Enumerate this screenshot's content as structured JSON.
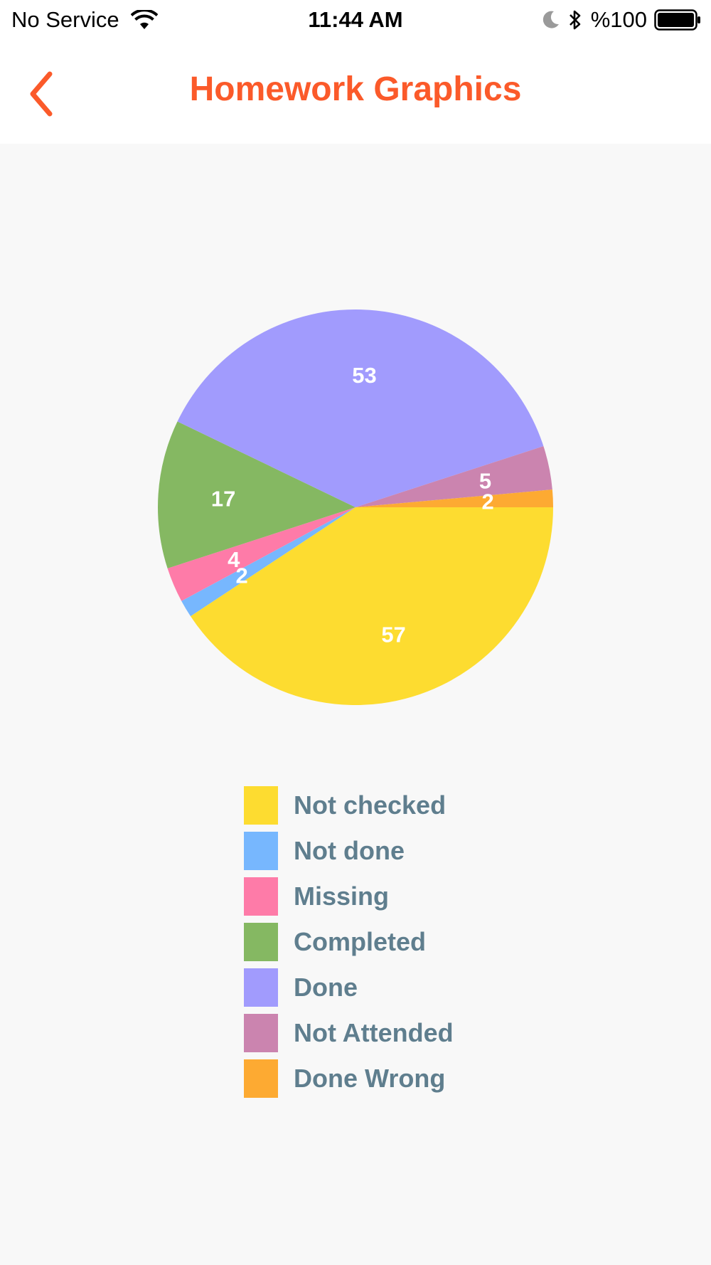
{
  "status_bar": {
    "carrier": "No Service",
    "time": "11:44 AM",
    "battery": "%100",
    "icons": [
      "wifi-icon",
      "moon-icon",
      "bluetooth-icon",
      "battery-icon"
    ]
  },
  "header": {
    "title": "Homework Graphics",
    "back_icon": "chevron-left-icon",
    "accent_color": "#fb5a2a"
  },
  "chart_data": {
    "type": "pie",
    "categories": [
      "Not checked",
      "Not done",
      "Missing",
      "Completed",
      "Done",
      "Not Attended",
      "Done Wrong"
    ],
    "values": [
      57,
      2,
      4,
      17,
      53,
      5,
      2
    ],
    "colors": [
      "#fddc30",
      "#77b7fe",
      "#fe7ba8",
      "#85b862",
      "#a19bfd",
      "#cb84af",
      "#fdaa32"
    ],
    "data_labels": [
      "57",
      "2",
      "4",
      "17",
      "53",
      "5",
      "2"
    ],
    "legend_position": "bottom",
    "start_angle": "3 o'clock",
    "direction": "clockwise"
  }
}
